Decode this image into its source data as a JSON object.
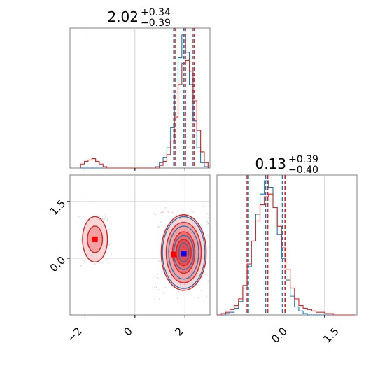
{
  "colors": {
    "blue": "#1f77b4",
    "red": "#d62728",
    "fill_red": "#e3292c",
    "grid": "#c8c8c8",
    "frame": "#808080"
  },
  "chart_data": [
    {
      "type": "histogram",
      "panel": "top-left",
      "title": {
        "value": "2.02",
        "plus": "+0.34",
        "minus": "−0.39"
      },
      "quantiles": {
        "blue": [
          1.55,
          1.96,
          2.3
        ],
        "red": [
          1.6,
          2.02,
          2.36
        ]
      },
      "xlim": [
        -2.6,
        3.0
      ],
      "bins_x": [
        -2.1,
        -1.95,
        -1.8,
        -1.65,
        -1.5,
        -1.35,
        -1.2,
        -1.05,
        -0.9,
        -0.75,
        -0.6,
        -0.45,
        -0.3,
        -0.15,
        0.0,
        0.15,
        0.3,
        0.45,
        0.6,
        0.75,
        0.9,
        1.05,
        1.2,
        1.35,
        1.5,
        1.65,
        1.8,
        1.95,
        2.1,
        2.25,
        2.4,
        2.55,
        2.7,
        2.85
      ],
      "series": [
        {
          "color": "blue",
          "counts": [
            0,
            0,
            0,
            0,
            0,
            0,
            0,
            0,
            0,
            0,
            0,
            0,
            0,
            0,
            0,
            0,
            0,
            0,
            0,
            0,
            0.01,
            0.04,
            0.08,
            0.15,
            0.3,
            0.55,
            0.82,
            0.99,
            0.86,
            0.62,
            0.35,
            0.15,
            0.04,
            0.01
          ]
        },
        {
          "color": "red",
          "counts": [
            0.03,
            0.05,
            0.06,
            0.07,
            0.05,
            0.03,
            0.01,
            0,
            0,
            0,
            0,
            0,
            0,
            0,
            0,
            0,
            0,
            0,
            0,
            0,
            0,
            0.02,
            0.05,
            0.1,
            0.2,
            0.38,
            0.62,
            0.78,
            0.8,
            0.72,
            0.5,
            0.28,
            0.12,
            0.04
          ]
        }
      ]
    },
    {
      "type": "histogram",
      "panel": "bottom-right",
      "title": {
        "value": "0.13",
        "plus": "+0.39",
        "minus": "−0.40"
      },
      "quantiles": {
        "blue": [
          -0.27,
          0.13,
          0.52
        ],
        "red": [
          -0.3,
          0.18,
          0.58
        ]
      },
      "xlim": [
        -1.0,
        2.25
      ],
      "xticks": [
        "0.0",
        "1.5"
      ],
      "bins_x": [
        -0.95,
        -0.85,
        -0.75,
        -0.65,
        -0.55,
        -0.45,
        -0.35,
        -0.25,
        -0.15,
        -0.05,
        0.05,
        0.15,
        0.25,
        0.35,
        0.45,
        0.55,
        0.65,
        0.75,
        0.85,
        0.95,
        1.05,
        1.15,
        1.25,
        1.35,
        1.45,
        1.55,
        1.65,
        1.75,
        1.85,
        1.95,
        2.05,
        2.15
      ],
      "series": [
        {
          "color": "blue",
          "counts": [
            0,
            0,
            0.01,
            0.02,
            0.05,
            0.1,
            0.2,
            0.36,
            0.55,
            0.75,
            0.9,
            1.0,
            0.95,
            0.8,
            0.6,
            0.42,
            0.26,
            0.14,
            0.06,
            0.03,
            0.01,
            0,
            0,
            0,
            0,
            0,
            0,
            0,
            0,
            0,
            0,
            0
          ]
        },
        {
          "color": "red",
          "counts": [
            0,
            0.01,
            0.02,
            0.04,
            0.07,
            0.12,
            0.22,
            0.38,
            0.55,
            0.7,
            0.82,
            0.88,
            0.9,
            0.8,
            0.66,
            0.5,
            0.34,
            0.2,
            0.12,
            0.07,
            0.05,
            0.04,
            0.03,
            0.02,
            0.02,
            0.01,
            0.01,
            0,
            0,
            0,
            0,
            0
          ]
        }
      ]
    },
    {
      "type": "contour",
      "panel": "bottom-left",
      "xlim": [
        -2.6,
        3.0
      ],
      "ylim": [
        -1.5,
        2.2
      ],
      "xticks": [
        "−2",
        "0",
        "2"
      ],
      "yticks": [
        "0.0",
        "1.5"
      ],
      "red_modes": [
        {
          "x": 1.95,
          "y": 0.15,
          "rx": [
            0.9,
            0.7,
            0.45,
            0.3
          ],
          "ry": [
            1.0,
            0.8,
            0.55,
            0.35
          ]
        },
        {
          "x": -1.6,
          "y": 0.5,
          "rx": [
            0.5,
            0.3
          ],
          "ry": [
            0.6,
            0.35
          ]
        }
      ],
      "blue_modes": [
        {
          "x": 1.95,
          "y": 0.15,
          "rx": [
            0.85,
            0.6,
            0.4,
            0.2
          ],
          "ry": [
            0.95,
            0.7,
            0.45,
            0.25
          ]
        }
      ],
      "red_markers": [
        {
          "x": -1.6,
          "y": 0.5
        },
        {
          "x": 1.55,
          "y": 0.1
        }
      ],
      "blue_marker": {
        "x": 1.95,
        "y": 0.12
      }
    }
  ]
}
